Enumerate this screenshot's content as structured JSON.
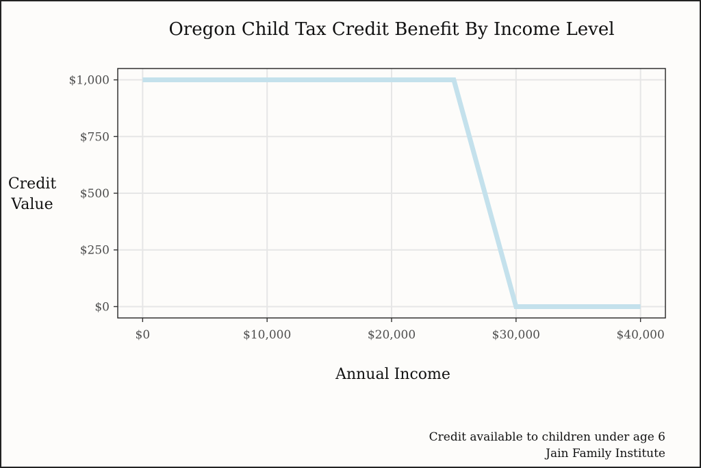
{
  "chart_data": {
    "type": "line",
    "title": "Oregon Child Tax Credit Benefit By Income Level",
    "xlabel": "Annual Income",
    "ylabel_lines": [
      "Credit",
      "Value"
    ],
    "x": [
      0,
      25000,
      30000,
      40000
    ],
    "series": [
      {
        "values": [
          1000,
          1000,
          0,
          0
        ],
        "color": "#c4e1ec"
      }
    ],
    "xlim": [
      -2000,
      42000
    ],
    "ylim": [
      -50,
      1050
    ],
    "xticks": [
      0,
      10000,
      20000,
      30000,
      40000
    ],
    "xtick_labels": [
      "$0",
      "$10,000",
      "$20,000",
      "$30,000",
      "$40,000"
    ],
    "yticks": [
      0,
      250,
      500,
      750,
      1000
    ],
    "ytick_labels": [
      "$0",
      "$250",
      "$500",
      "$750",
      "$1,000"
    ],
    "grid": true,
    "legend": "none"
  },
  "caption": {
    "line1": "Credit available to children under age 6",
    "line2": "Jain Family Institute"
  },
  "colors": {
    "background": "#fdfcfa",
    "panel_border": "#222222",
    "grid": "#e6e6e6",
    "line": "#c4e1ec"
  }
}
